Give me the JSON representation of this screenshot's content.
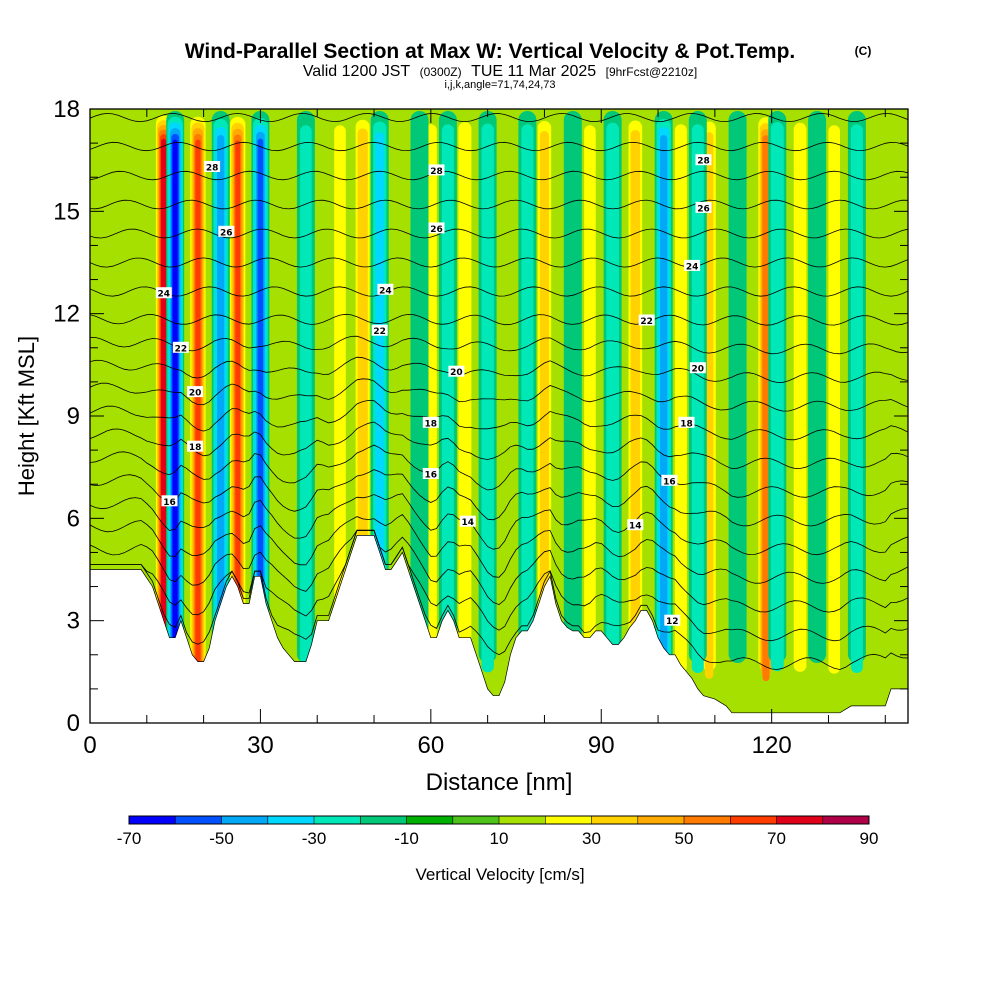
{
  "chart_data": {
    "type": "heatmap",
    "title": "Wind-Parallel Section at Max W: Vertical Velocity & Pot.Temp.",
    "title_mark": "(C)",
    "subtitle_main": "Valid 1200 JST",
    "subtitle_utc": "(0300Z)",
    "subtitle_date": "TUE 11 Mar 2025",
    "subtitle_run": "[9hrFcst@2210z]",
    "subtitle_indices": "i,j,k,angle=71,74,24,73",
    "xlabel": "Distance [nm]",
    "ylabel": "Height [Kft MSL]",
    "xlim": [
      0,
      144
    ],
    "ylim": [
      0,
      18
    ],
    "x_ticks": [
      "0",
      "30",
      "60",
      "90",
      "120"
    ],
    "x_tick_values": [
      0,
      30,
      60,
      90,
      120
    ],
    "y_ticks": [
      "0",
      "3",
      "6",
      "9",
      "12",
      "15",
      "18"
    ],
    "y_tick_values": [
      0,
      3,
      6,
      9,
      12,
      15,
      18
    ],
    "colorbar": {
      "label": "Vertical Velocity [cm/s]",
      "range": [
        -70,
        90
      ],
      "step": 10,
      "tick_labels": [
        "-70",
        "-50",
        "-30",
        "-10",
        "10",
        "30",
        "50",
        "70",
        "90"
      ],
      "tick_values": [
        -70,
        -50,
        -30,
        -10,
        10,
        30,
        50,
        70,
        90
      ],
      "colors": [
        "#0000ff",
        "#0050ff",
        "#00a8f5",
        "#00d8ff",
        "#00e8b8",
        "#00c878",
        "#00b000",
        "#4cc21a",
        "#a6e000",
        "#ffff00",
        "#ffd200",
        "#ffaa00",
        "#ff7a00",
        "#ff3c00",
        "#e0001a",
        "#b00048"
      ]
    },
    "updraft_bands": [
      {
        "x": 13,
        "w": 78
      },
      {
        "x": 19,
        "w": 62
      },
      {
        "x": 26,
        "w": 60
      },
      {
        "x": 35,
        "w": 18
      },
      {
        "x": 44,
        "w": 20
      },
      {
        "x": 48,
        "w": 38
      },
      {
        "x": 55,
        "w": 14
      },
      {
        "x": 60,
        "w": 22
      },
      {
        "x": 66,
        "w": 28
      },
      {
        "x": 74,
        "w": 16
      },
      {
        "x": 80,
        "w": 32
      },
      {
        "x": 88,
        "w": 20
      },
      {
        "x": 96,
        "w": 34
      },
      {
        "x": 104,
        "w": 22
      },
      {
        "x": 109,
        "w": 30
      },
      {
        "x": 119,
        "w": 58
      },
      {
        "x": 125,
        "w": 26
      },
      {
        "x": 131,
        "w": 20
      },
      {
        "x": 140,
        "w": 18
      }
    ],
    "downdraft_bands": [
      {
        "x": 15,
        "w": -62
      },
      {
        "x": 23,
        "w": -42
      },
      {
        "x": 30,
        "w": -50
      },
      {
        "x": 38,
        "w": -20
      },
      {
        "x": 51,
        "w": -30
      },
      {
        "x": 58,
        "w": -18
      },
      {
        "x": 63,
        "w": -22
      },
      {
        "x": 70,
        "w": -24
      },
      {
        "x": 77,
        "w": -22
      },
      {
        "x": 85,
        "w": -18
      },
      {
        "x": 92,
        "w": -26
      },
      {
        "x": 101,
        "w": -42
      },
      {
        "x": 107,
        "w": -22
      },
      {
        "x": 114,
        "w": -14
      },
      {
        "x": 121,
        "w": -28
      },
      {
        "x": 128,
        "w": -16
      },
      {
        "x": 135,
        "w": -22
      }
    ],
    "terrain_height": [
      [
        0,
        4.5
      ],
      [
        6,
        4.5
      ],
      [
        9,
        4.5
      ],
      [
        11,
        4.0
      ],
      [
        12,
        3.5
      ],
      [
        13,
        3.0
      ],
      [
        14,
        2.5
      ],
      [
        15,
        2.5
      ],
      [
        16,
        3.0
      ],
      [
        17,
        2.5
      ],
      [
        18,
        2.0
      ],
      [
        19,
        1.8
      ],
      [
        20,
        1.8
      ],
      [
        21,
        2.2
      ],
      [
        22,
        3.0
      ],
      [
        23,
        3.5
      ],
      [
        24,
        4.0
      ],
      [
        25,
        4.3
      ],
      [
        26,
        4.0
      ],
      [
        27,
        3.5
      ],
      [
        28,
        3.5
      ],
      [
        29,
        4.3
      ],
      [
        30,
        4.3
      ],
      [
        31,
        3.5
      ],
      [
        32,
        3.0
      ],
      [
        33,
        2.5
      ],
      [
        34,
        2.2
      ],
      [
        35,
        2.0
      ],
      [
        36,
        1.8
      ],
      [
        38,
        1.8
      ],
      [
        39,
        2.3
      ],
      [
        40,
        3.0
      ],
      [
        42,
        3.0
      ],
      [
        43,
        3.5
      ],
      [
        44,
        4.0
      ],
      [
        45,
        4.5
      ],
      [
        46,
        5.0
      ],
      [
        47,
        5.5
      ],
      [
        50,
        5.5
      ],
      [
        51,
        5.0
      ],
      [
        52,
        4.5
      ],
      [
        53,
        4.5
      ],
      [
        55,
        5.0
      ],
      [
        56,
        4.5
      ],
      [
        57,
        4.0
      ],
      [
        58,
        3.5
      ],
      [
        59,
        3.0
      ],
      [
        60,
        2.5
      ],
      [
        61,
        2.5
      ],
      [
        62,
        3.0
      ],
      [
        63,
        3.3
      ],
      [
        64,
        3.0
      ],
      [
        65,
        2.5
      ],
      [
        66,
        2.5
      ],
      [
        67,
        2.5
      ],
      [
        68,
        2.0
      ],
      [
        69,
        1.5
      ],
      [
        70,
        1.0
      ],
      [
        71,
        0.8
      ],
      [
        72,
        0.8
      ],
      [
        73,
        1.2
      ],
      [
        74,
        2.0
      ],
      [
        75,
        2.5
      ],
      [
        76,
        2.7
      ],
      [
        77,
        2.7
      ],
      [
        78,
        3.0
      ],
      [
        79,
        3.5
      ],
      [
        80,
        4.0
      ],
      [
        81,
        4.3
      ],
      [
        82,
        3.5
      ],
      [
        83,
        3.0
      ],
      [
        84,
        2.8
      ],
      [
        85,
        2.7
      ],
      [
        86,
        2.7
      ],
      [
        87,
        2.5
      ],
      [
        88,
        2.5
      ],
      [
        89,
        2.7
      ],
      [
        90,
        2.7
      ],
      [
        91,
        2.5
      ],
      [
        92,
        2.3
      ],
      [
        93,
        2.3
      ],
      [
        94,
        2.5
      ],
      [
        95,
        2.8
      ],
      [
        96,
        3.0
      ],
      [
        97,
        3.3
      ],
      [
        98,
        3.3
      ],
      [
        99,
        3.0
      ],
      [
        100,
        2.5
      ],
      [
        101,
        2.2
      ],
      [
        102,
        2.0
      ],
      [
        103,
        2.0
      ],
      [
        104,
        1.7
      ],
      [
        105,
        1.5
      ],
      [
        106,
        1.3
      ],
      [
        107,
        1.0
      ],
      [
        108,
        0.8
      ],
      [
        110,
        0.7
      ],
      [
        112,
        0.5
      ],
      [
        113,
        0.3
      ],
      [
        116,
        0.3
      ],
      [
        118,
        0.3
      ],
      [
        121,
        0.3
      ],
      [
        124,
        0.3
      ],
      [
        125,
        0.3
      ],
      [
        126,
        0.3
      ],
      [
        130,
        0.3
      ],
      [
        132,
        0.3
      ],
      [
        134,
        0.5
      ],
      [
        140,
        0.5
      ],
      [
        141,
        1.0
      ],
      [
        144,
        1.0
      ]
    ],
    "theta_contour_labels": [
      {
        "text": "28",
        "x": 21.5,
        "y": 16.3
      },
      {
        "text": "28",
        "x": 61,
        "y": 16.2
      },
      {
        "text": "28",
        "x": 108,
        "y": 16.5
      },
      {
        "text": "26",
        "x": 24,
        "y": 14.4
      },
      {
        "text": "26",
        "x": 61,
        "y": 14.5
      },
      {
        "text": "26",
        "x": 108,
        "y": 15.1
      },
      {
        "text": "24",
        "x": 13,
        "y": 12.6
      },
      {
        "text": "24",
        "x": 52,
        "y": 12.7
      },
      {
        "text": "24",
        "x": 106,
        "y": 13.4
      },
      {
        "text": "22",
        "x": 16,
        "y": 11.0
      },
      {
        "text": "22",
        "x": 51,
        "y": 11.5
      },
      {
        "text": "22",
        "x": 98,
        "y": 11.8
      },
      {
        "text": "20",
        "x": 18.5,
        "y": 9.7
      },
      {
        "text": "20",
        "x": 64.5,
        "y": 10.3
      },
      {
        "text": "20",
        "x": 107,
        "y": 10.4
      },
      {
        "text": "18",
        "x": 18.5,
        "y": 8.1
      },
      {
        "text": "18",
        "x": 60,
        "y": 8.8
      },
      {
        "text": "18",
        "x": 105,
        "y": 8.8
      },
      {
        "text": "16",
        "x": 14,
        "y": 6.5
      },
      {
        "text": "16",
        "x": 60,
        "y": 7.3
      },
      {
        "text": "16",
        "x": 102,
        "y": 7.1
      },
      {
        "text": "14",
        "x": 66.5,
        "y": 5.9
      },
      {
        "text": "14",
        "x": 96,
        "y": 5.8
      },
      {
        "text": "12",
        "x": 102.5,
        "y": 3.0
      }
    ]
  }
}
